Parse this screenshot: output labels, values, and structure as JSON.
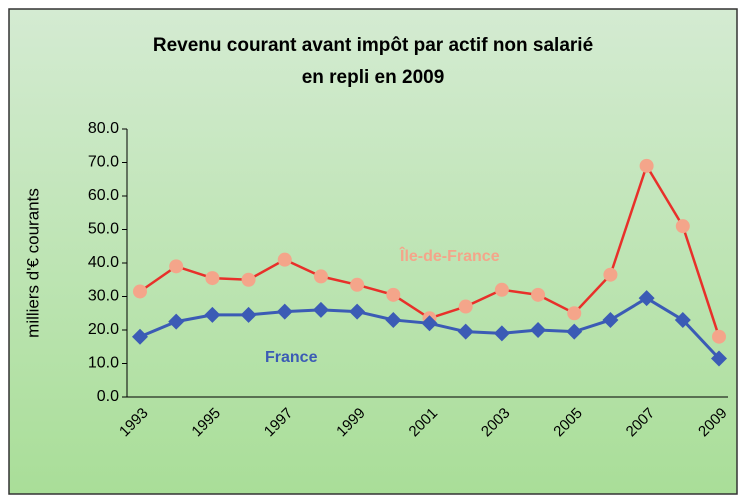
{
  "chart_data": {
    "type": "line",
    "title": [
      "Revenu courant avant impôt par actif non salarié",
      "en repli en 2009"
    ],
    "ylabel": "milliers d'€ courants",
    "categories": [
      "1993",
      null,
      "1995",
      null,
      "1997",
      null,
      "1999",
      null,
      "2001",
      null,
      "2003",
      null,
      "2005",
      null,
      "2007",
      null,
      "2009"
    ],
    "series": [
      {
        "name": "Île-de-France",
        "color": "#e8302a",
        "marker_color": "#f4a58a",
        "values": [
          31.5,
          39,
          35.5,
          35,
          41,
          36,
          33.5,
          30.5,
          23.5,
          27,
          32,
          30.5,
          25,
          36.5,
          69,
          51,
          18
        ]
      },
      {
        "name": "France",
        "color": "#3b5bb5",
        "marker_color": "#3b5bb5",
        "values": [
          18,
          22.5,
          24.5,
          24.5,
          25.5,
          26,
          25.5,
          23,
          22,
          19.5,
          19,
          20,
          19.5,
          23,
          29.5,
          23,
          11.5
        ]
      }
    ],
    "ylim": [
      0,
      80
    ],
    "yticks": [
      {
        "value": 0,
        "label": "0.0"
      },
      {
        "value": 10,
        "label": "10.0"
      },
      {
        "value": 20,
        "label": "20.0"
      },
      {
        "value": 30,
        "label": "30.0"
      },
      {
        "value": 40,
        "label": "40.0"
      },
      {
        "value": 50,
        "label": "50.0"
      },
      {
        "value": 60,
        "label": "60.0"
      },
      {
        "value": 70,
        "label": "70.0"
      },
      {
        "value": 80,
        "label": "80.0"
      }
    ],
    "grid": false
  }
}
